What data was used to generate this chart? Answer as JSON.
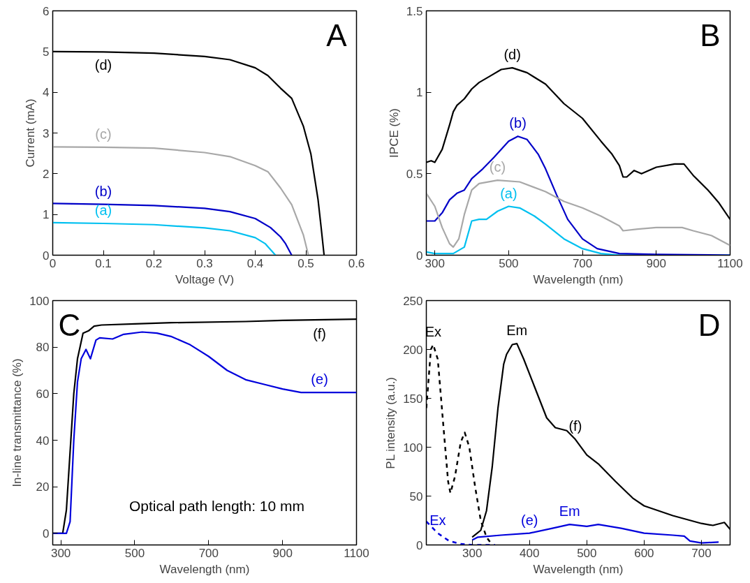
{
  "chart_data": [
    {
      "type": "line",
      "title": "A",
      "xlabel": "Voltage (V)",
      "ylabel": "Current (mA)",
      "xlim": [
        0,
        0.6
      ],
      "ylim": [
        0,
        6
      ],
      "xticks": [
        0,
        0.1,
        0.2,
        0.3,
        0.4,
        0.5,
        0.6
      ],
      "yticks": [
        0,
        1,
        2,
        3,
        4,
        5,
        6
      ],
      "grid": false,
      "marker": "none",
      "series": [
        {
          "color": "#00c0f0",
          "x": [
            0,
            0.1,
            0.2,
            0.3,
            0.35,
            0.4,
            0.42,
            0.44
          ],
          "values": [
            0.8,
            0.78,
            0.75,
            0.67,
            0.6,
            0.43,
            0.28,
            0
          ]
        },
        {
          "color": "#0000c8",
          "x": [
            0,
            0.1,
            0.2,
            0.3,
            0.35,
            0.4,
            0.43,
            0.45,
            0.46,
            0.472
          ],
          "values": [
            1.27,
            1.25,
            1.22,
            1.15,
            1.07,
            0.9,
            0.68,
            0.45,
            0.28,
            0
          ]
        },
        {
          "color": "#a8a8a8",
          "x": [
            0,
            0.1,
            0.2,
            0.3,
            0.35,
            0.4,
            0.425,
            0.45,
            0.472,
            0.495,
            0.505
          ],
          "values": [
            2.66,
            2.65,
            2.63,
            2.52,
            2.42,
            2.2,
            2.05,
            1.65,
            1.24,
            0.5,
            0
          ]
        },
        {
          "color": "#000000",
          "x": [
            0,
            0.1,
            0.2,
            0.3,
            0.35,
            0.4,
            0.425,
            0.45,
            0.472,
            0.495,
            0.51,
            0.524,
            0.53,
            0.536
          ],
          "values": [
            5.0,
            4.99,
            4.96,
            4.88,
            4.8,
            4.6,
            4.41,
            4.1,
            3.85,
            3.17,
            2.48,
            1.37,
            0.7,
            0
          ]
        }
      ],
      "annotations": [
        {
          "text": "(a)",
          "x": 0.1,
          "y": 0.78
        },
        {
          "text": "(b)",
          "x": 0.1,
          "y": 1.25
        },
        {
          "text": "(c)",
          "x": 0.1,
          "y": 2.65
        },
        {
          "text": "(d)",
          "x": 0.1,
          "y": 4.99
        }
      ]
    },
    {
      "type": "line",
      "title": "B",
      "xlabel": "Wavelength (nm)",
      "ylabel": "IPCE (%)",
      "xlim": [
        277,
        1100
      ],
      "ylim": [
        0,
        1.5
      ],
      "xticks": [
        300,
        500,
        700,
        900,
        1100
      ],
      "yticks": [
        0,
        0.5,
        1,
        1.5
      ],
      "grid": false,
      "marker": "none",
      "series": [
        {
          "color": "#00c0f0",
          "x": [
            277,
            300,
            350,
            380,
            400,
            420,
            440,
            470,
            500,
            530,
            570,
            600,
            650,
            700,
            750,
            800,
            1100
          ],
          "values": [
            0.02,
            0.01,
            0.01,
            0.05,
            0.21,
            0.22,
            0.22,
            0.27,
            0.3,
            0.29,
            0.24,
            0.19,
            0.1,
            0.04,
            0.01,
            0,
            0
          ]
        },
        {
          "color": "#0000c8",
          "x": [
            277,
            300,
            320,
            340,
            360,
            380,
            400,
            430,
            460,
            500,
            525,
            550,
            580,
            600,
            630,
            660,
            700,
            740,
            800,
            900,
            1100
          ],
          "values": [
            0.21,
            0.21,
            0.26,
            0.34,
            0.38,
            0.4,
            0.47,
            0.53,
            0.6,
            0.7,
            0.73,
            0.71,
            0.62,
            0.53,
            0.37,
            0.22,
            0.1,
            0.04,
            0.01,
            0.005,
            0
          ]
        },
        {
          "color": "#a8a8a8",
          "x": [
            277,
            300,
            320,
            340,
            350,
            365,
            380,
            400,
            420,
            470,
            530,
            600,
            650,
            700,
            750,
            800,
            810,
            850,
            900,
            970,
            1000,
            1050,
            1100
          ],
          "values": [
            0.38,
            0.3,
            0.17,
            0.07,
            0.05,
            0.1,
            0.25,
            0.4,
            0.44,
            0.46,
            0.45,
            0.39,
            0.33,
            0.29,
            0.24,
            0.18,
            0.15,
            0.16,
            0.17,
            0.17,
            0.15,
            0.12,
            0.06
          ]
        },
        {
          "color": "#000000",
          "x": [
            277,
            290,
            300,
            320,
            340,
            350,
            360,
            380,
            400,
            420,
            450,
            480,
            510,
            550,
            600,
            650,
            700,
            750,
            780,
            800,
            810,
            820,
            840,
            860,
            900,
            950,
            975,
            1000,
            1040,
            1070,
            1100
          ],
          "values": [
            0.57,
            0.58,
            0.57,
            0.65,
            0.8,
            0.88,
            0.92,
            0.96,
            1.02,
            1.06,
            1.1,
            1.14,
            1.15,
            1.12,
            1.05,
            0.93,
            0.84,
            0.7,
            0.62,
            0.55,
            0.48,
            0.48,
            0.52,
            0.5,
            0.54,
            0.56,
            0.56,
            0.49,
            0.4,
            0.32,
            0.22
          ]
        }
      ],
      "annotations": [
        {
          "text": "(a)",
          "x": 500,
          "y": 0.3
        },
        {
          "text": "(b)",
          "x": 525,
          "y": 0.73
        },
        {
          "text": "(c)",
          "x": 470,
          "y": 0.46
        },
        {
          "text": "(d)",
          "x": 510,
          "y": 1.15
        }
      ]
    },
    {
      "type": "line",
      "title": "C",
      "xlabel": "Wavelength (nm)",
      "ylabel": "In-line transmittance (%)",
      "xlim": [
        278,
        1100
      ],
      "ylim": [
        -5,
        100
      ],
      "xticks": [
        300,
        500,
        700,
        900,
        1100
      ],
      "yticks": [
        0,
        20,
        40,
        60,
        80,
        100
      ],
      "grid": false,
      "marker": "none",
      "series": [
        {
          "color": "#000000",
          "x": [
            278,
            305,
            315,
            325,
            335,
            345,
            360,
            375,
            390,
            410,
            500,
            600,
            800,
            900,
            1100
          ],
          "values": [
            0,
            0,
            10,
            35,
            60,
            75,
            86,
            87,
            89,
            89.5,
            90,
            90.5,
            91,
            91.5,
            92
          ]
        },
        {
          "color": "#0000dc",
          "x": [
            278,
            315,
            325,
            335,
            345,
            355,
            368,
            380,
            395,
            405,
            440,
            470,
            520,
            560,
            600,
            650,
            700,
            750,
            800,
            850,
            900,
            950,
            1000,
            1100
          ],
          "values": [
            0,
            0,
            5,
            40,
            65,
            75,
            79,
            75,
            83,
            84,
            83.5,
            85.5,
            86.5,
            86,
            84.5,
            81,
            76,
            70,
            66,
            64,
            62,
            60.5,
            60.5,
            60.5
          ]
        }
      ],
      "annotations": [
        {
          "text": "(f)",
          "x": 1000,
          "y": 91.5
        },
        {
          "text": "(e)",
          "x": 1000,
          "y": 60.5
        },
        "Optical path length: 10 mm"
      ]
    },
    {
      "type": "line",
      "title": "D",
      "xlabel": "Wavelength (nm)",
      "ylabel": "PL intensity (a.u.)",
      "xlim": [
        220,
        750
      ],
      "ylim": [
        0,
        250
      ],
      "xticks": [
        300,
        400,
        500,
        600,
        700
      ],
      "yticks": [
        0,
        50,
        100,
        150,
        200,
        250
      ],
      "grid": false,
      "marker": "none",
      "series": [
        {
          "color": "#000000",
          "line_style": "dashed",
          "x": [
            220,
            228,
            232,
            240,
            250,
            258,
            262,
            270,
            280,
            287,
            295,
            305,
            315,
            325,
            335
          ],
          "values": [
            140,
            200,
            205,
            190,
            120,
            65,
            53,
            70,
            105,
            115,
            100,
            60,
            25,
            8,
            0
          ]
        },
        {
          "color": "#000000",
          "line_style": "solid",
          "x": [
            300,
            315,
            325,
            335,
            345,
            355,
            360,
            370,
            378,
            390,
            410,
            430,
            445,
            465,
            480,
            500,
            520,
            550,
            580,
            600,
            650,
            700,
            720,
            740,
            750
          ],
          "values": [
            8,
            15,
            35,
            80,
            140,
            185,
            195,
            205,
            206,
            190,
            160,
            130,
            120,
            117,
            108,
            92,
            83,
            65,
            48,
            40,
            30,
            22,
            20,
            23,
            16
          ]
        },
        {
          "color": "#0000dc",
          "line_style": "dashed",
          "x": [
            220,
            240,
            260,
            280,
            300,
            340
          ],
          "values": [
            24,
            12,
            4,
            1,
            0,
            0
          ]
        },
        {
          "color": "#0000dc",
          "line_style": "solid",
          "x": [
            300,
            310,
            350,
            400,
            440,
            470,
            500,
            520,
            560,
            600,
            650,
            670,
            680,
            700,
            730
          ],
          "values": [
            5,
            8,
            10,
            12,
            17,
            21,
            19,
            21,
            17,
            12,
            10,
            9,
            4,
            2,
            3
          ]
        }
      ],
      "annotations": [
        {
          "text": "Ex",
          "x": 232,
          "y": 205
        },
        {
          "text": "Em",
          "x": 378,
          "y": 206
        },
        {
          "text": "(f)",
          "x": 480,
          "y": 108
        },
        {
          "text": "Ex",
          "x": 240,
          "y": 12
        },
        {
          "text": "(e)",
          "x": 400,
          "y": 12
        },
        {
          "text": "Em",
          "x": 470,
          "y": 21
        }
      ]
    }
  ]
}
